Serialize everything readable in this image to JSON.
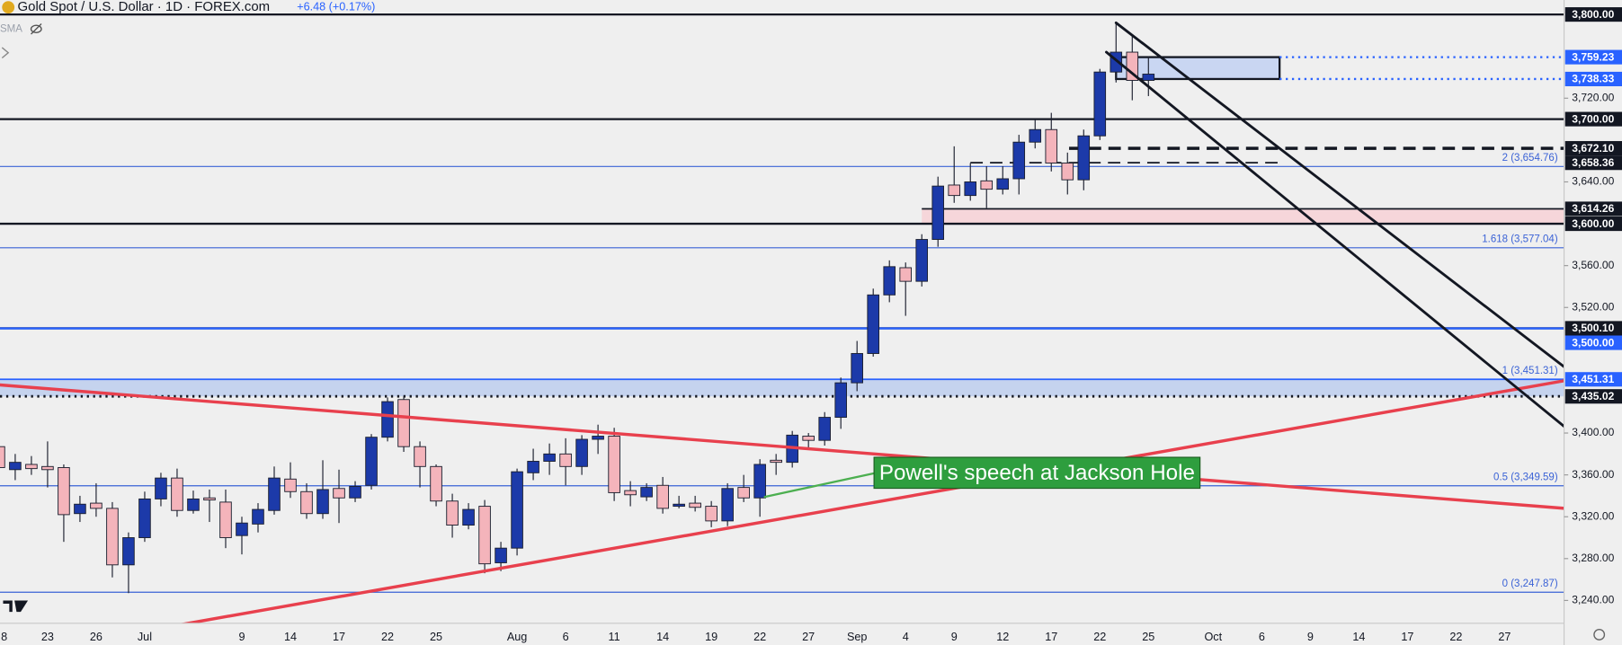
{
  "chart_data": {
    "type": "candlestick",
    "title": "Gold Spot / U.S. Dollar · 1D · FOREX.com",
    "change": "+6.48 (+0.17%)",
    "indicator": "SMA",
    "up_color": "#1c3aa9",
    "down_color": "#f4b4bb",
    "wick_color": "#1b1f2e",
    "categories": [
      "8",
      null,
      null,
      "23",
      null,
      null,
      "26",
      null,
      null,
      "Jul",
      null,
      null,
      null,
      null,
      null,
      "9",
      null,
      null,
      "14",
      null,
      null,
      "17",
      null,
      null,
      "22",
      null,
      null,
      "25",
      null,
      null,
      null,
      null,
      "Aug",
      null,
      null,
      "6",
      null,
      null,
      "11",
      null,
      null,
      "14",
      null,
      null,
      "19",
      null,
      null,
      "22",
      null,
      null,
      "27",
      null,
      null,
      "Sep",
      null,
      null,
      "4",
      null,
      null,
      "9",
      null,
      null,
      "12",
      null,
      null,
      "17",
      null,
      null,
      "22",
      null,
      null,
      "25",
      null,
      null,
      null,
      "Oct",
      null,
      null,
      "6",
      null,
      null,
      "9",
      null,
      null,
      "14",
      null,
      null,
      "17",
      null,
      null,
      "22",
      null,
      null,
      "27",
      null,
      null,
      null
    ],
    "open": [
      3387,
      3365,
      3370,
      3368,
      3367,
      3323,
      3333,
      3328,
      3274,
      3300,
      3337,
      3357,
      3326,
      3338,
      3334,
      3302,
      3313,
      3326,
      3356,
      3344,
      3323,
      3347,
      3338,
      3350,
      3396,
      3432,
      3387,
      3368,
      3335,
      3312,
      3330,
      3276,
      3290,
      3362,
      3373,
      3380,
      3368,
      3394,
      3397,
      3345,
      3339,
      3350,
      3330,
      3333,
      3330,
      3316,
      3348,
      3338,
      3374,
      3372,
      3397,
      3393,
      3415,
      3448,
      3476,
      3532,
      3558,
      3545,
      3585,
      3637,
      3627,
      3641,
      3633,
      3643,
      3678,
      3690,
      3658,
      3642,
      3684,
      3745,
      3764,
      3737,
      null,
      null,
      null,
      null,
      null,
      null,
      null,
      null,
      null,
      null,
      null,
      null,
      null,
      null,
      null,
      null,
      null,
      null,
      null,
      null,
      null,
      null,
      null,
      null,
      null
    ],
    "high": [
      3390,
      3380,
      3378,
      3392,
      3370,
      3340,
      3352,
      3334,
      3305,
      3344,
      3362,
      3366,
      3345,
      3346,
      3346,
      3320,
      3333,
      3368,
      3372,
      3352,
      3374,
      3365,
      3354,
      3399,
      3434,
      3435,
      3392,
      3370,
      3342,
      3333,
      3336,
      3296,
      3366,
      3385,
      3390,
      3395,
      3398,
      3408,
      3405,
      3354,
      3352,
      3358,
      3340,
      3340,
      3335,
      3352,
      3360,
      3375,
      3380,
      3402,
      3400,
      3420,
      3453,
      3488,
      3538,
      3565,
      3563,
      3590,
      3645,
      3674,
      3658,
      3655,
      3655,
      3685,
      3700,
      3706,
      3668,
      3690,
      3748,
      3791,
      3779,
      3760,
      null,
      null,
      null,
      null,
      null,
      null,
      null,
      null,
      null,
      null,
      null,
      null,
      null,
      null,
      null,
      null,
      null,
      null,
      null,
      null,
      null,
      null,
      null,
      null,
      null
    ],
    "low": [
      3362,
      3355,
      3360,
      3348,
      3296,
      3315,
      3320,
      3262,
      3247,
      3296,
      3330,
      3320,
      3323,
      3315,
      3290,
      3284,
      3305,
      3322,
      3338,
      3318,
      3318,
      3314,
      3334,
      3346,
      3392,
      3382,
      3348,
      3330,
      3300,
      3308,
      3266,
      3268,
      3283,
      3355,
      3360,
      3350,
      3360,
      3380,
      3335,
      3330,
      3335,
      3323,
      3328,
      3325,
      3310,
      3311,
      3334,
      3320,
      3360,
      3367,
      3385,
      3388,
      3404,
      3440,
      3473,
      3525,
      3512,
      3540,
      3578,
      3620,
      3622,
      3615,
      3628,
      3628,
      3672,
      3650,
      3628,
      3632,
      3680,
      3735,
      3718,
      3722,
      null,
      null,
      null,
      null,
      null,
      null,
      null,
      null,
      null,
      null,
      null,
      null,
      null,
      null,
      null,
      null,
      null,
      null,
      null,
      null,
      null,
      null,
      null,
      null,
      null
    ],
    "close": [
      3367,
      3372,
      3366,
      3365,
      3322,
      3332,
      3328,
      3274,
      3300,
      3337,
      3357,
      3326,
      3337,
      3336,
      3300,
      3314,
      3327,
      3357,
      3344,
      3323,
      3346,
      3338,
      3349,
      3396,
      3430,
      3387,
      3368,
      3335,
      3312,
      3327,
      3275,
      3290,
      3363,
      3373,
      3380,
      3368,
      3394,
      3397,
      3343,
      3341,
      3348,
      3328,
      3332,
      3329,
      3316,
      3347,
      3338,
      3370,
      3372,
      3398,
      3393,
      3415,
      3448,
      3476,
      3532,
      3559,
      3545,
      3585,
      3636,
      3627,
      3640,
      3633,
      3643,
      3678,
      3690,
      3658,
      3642,
      3684,
      3745,
      3764,
      3737,
      3743,
      null,
      null,
      null,
      null,
      null,
      null,
      null,
      null,
      null,
      null,
      null,
      null,
      null,
      null,
      null,
      null,
      null,
      null,
      null,
      null,
      null,
      null,
      null,
      null,
      null
    ],
    "ylim": [
      3218.2,
      3813.8
    ],
    "yticks": [
      {
        "value": 3240,
        "label": "3,240.00"
      },
      {
        "value": 3280,
        "label": "3,280.00"
      },
      {
        "value": 3320,
        "label": "3,320.00"
      },
      {
        "value": 3360,
        "label": "3,360.00"
      },
      {
        "value": 3400,
        "label": "3,400.00"
      },
      {
        "value": 3520,
        "label": "3,520.00"
      },
      {
        "value": 3560,
        "label": "3,560.00"
      },
      {
        "value": 3640,
        "label": "3,640.00"
      },
      {
        "value": 3720,
        "label": "3,720.00"
      }
    ],
    "zones": [
      {
        "high": 3759.23,
        "low": 3738.33,
        "from": 69.0,
        "to": 79.1,
        "color": "#c9d6f2",
        "border": "#131722"
      },
      {
        "high": 3614.26,
        "low": 3600,
        "from": 57,
        "color": "#f6d6da"
      },
      {
        "high": 3451.31,
        "low": 3435.02,
        "color": "#c5d3ee"
      }
    ],
    "fib_color": "#3a62d6",
    "fib_levels": [
      {
        "value": 3654.76,
        "label": "2 (3,654.76)"
      },
      {
        "value": 3577.04,
        "label": "1.618 (3,577.04)"
      },
      {
        "value": 3451.31,
        "label": "1 (3,451.31)"
      },
      {
        "value": 3349.59,
        "label": "0.5 (3,349.59)"
      },
      {
        "value": 3247.87,
        "label": "0 (3,247.87)"
      }
    ],
    "levels": [
      {
        "value": 3800,
        "label": "3,800.00",
        "color": "#131722",
        "style": "solid",
        "width": 2
      },
      {
        "value": 3759.23,
        "label": "3,759.23",
        "color": "#2962ff",
        "style": "dotted",
        "width": 2,
        "from": 79.1
      },
      {
        "value": 3738.33,
        "label": "3,738.33",
        "color": "#2962ff",
        "style": "dotted",
        "width": 2,
        "from": 79.1
      },
      {
        "value": 3700,
        "label": "3,700.00",
        "color": "#131722",
        "style": "solid",
        "width": 2
      },
      {
        "value": 3672.1,
        "label": "3,672.10",
        "color": "#131722",
        "style": "dashed",
        "width": 3,
        "from": 66.1
      },
      {
        "value": 3658.36,
        "label": "3,658.36",
        "color": "#131722",
        "style": "dashed",
        "width": 1.5,
        "from": 60,
        "to": 79.2
      },
      {
        "value": 3614.26,
        "label": "3,614.26",
        "color": "#131722",
        "style": "solid",
        "width": 1.5,
        "from": 57
      },
      {
        "value": 3600,
        "label": "3,600.00",
        "color": "#131722",
        "style": "solid",
        "width": 2
      },
      {
        "value": 3500.1,
        "label": "3,500.10",
        "color": "#131722",
        "style": "solid",
        "width": 2
      },
      {
        "value": 3500,
        "label": "3,500.00",
        "color": "#2962ff",
        "style": "solid",
        "width": 2
      },
      {
        "value": 3451.31,
        "label": "3,451.31",
        "color": "#2962ff",
        "style": "solid",
        "width": 1.5
      },
      {
        "value": 3435.02,
        "label": "3,435.02",
        "color": "#131722",
        "style": "dotted",
        "width": 2.5
      }
    ],
    "trendlines": [
      {
        "color": "#e8404d",
        "width": 3,
        "points": [
          [
            0,
            3446
          ],
          [
            96.7,
            3328
          ]
        ]
      },
      {
        "color": "#e8404d",
        "width": 3,
        "points": [
          [
            10.9,
            3216
          ],
          [
            96.7,
            3450
          ]
        ]
      },
      {
        "color": "#131722",
        "width": 2.5,
        "points": [
          [
            69.0,
            3792
          ],
          [
            96.7,
            3463
          ]
        ]
      },
      {
        "color": "#131722",
        "width": 2.5,
        "points": [
          [
            68.4,
            3764
          ],
          [
            96.7,
            3406
          ]
        ]
      },
      {
        "color": "#4caf50",
        "width": 2,
        "points": [
          [
            47.3,
            3339
          ],
          [
            54.05,
            3361.5
          ]
        ]
      }
    ],
    "annotation": {
      "text": "Powell's speech at Jackson Hole",
      "x": 54.05,
      "y": 3362,
      "color": "#2e9e3e"
    }
  }
}
